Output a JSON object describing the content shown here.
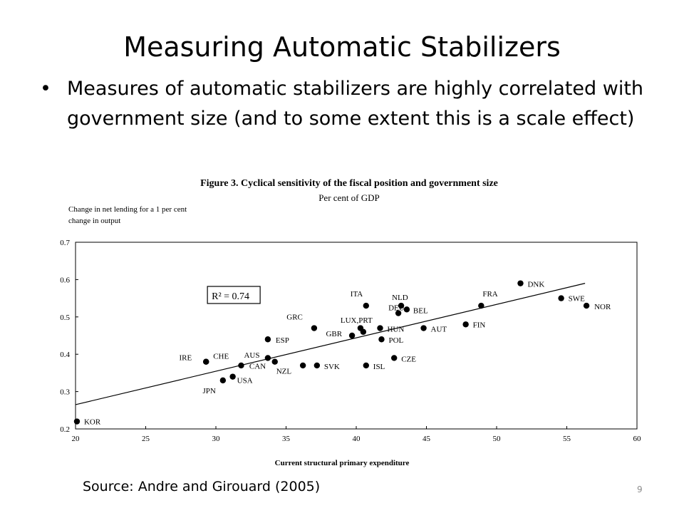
{
  "slide": {
    "title": "Measuring Automatic Stabilizers",
    "bullet": "Measures of automatic stabilizers are highly correlated with government size (and to some extent this is a scale effect)",
    "bullet_glyph": "•",
    "source": "Source: Andre and Girouard (2005)",
    "page_number": "9"
  },
  "chart_data": {
    "type": "scatter",
    "title": "Figure 3. Cyclical sensitivity of the fiscal position and government size",
    "subtitle": "Per cent of GDP",
    "ylabel": "Change in net lending for a 1 per cent change in output",
    "xlabel": "Current structural primary expenditure",
    "xlim": [
      20,
      60
    ],
    "ylim": [
      0.2,
      0.7
    ],
    "xticks": [
      20,
      25,
      30,
      35,
      40,
      45,
      50,
      55,
      60
    ],
    "xtick_labels": [
      "20",
      "25",
      "30",
      "35",
      "40",
      "45",
      "50",
      "55",
      "60"
    ],
    "yticks": [
      0.2,
      0.3,
      0.4,
      0.5,
      0.6,
      0.7
    ],
    "ytick_labels": [
      "0.2",
      "0.3",
      "0.4",
      "0.5",
      "0.6",
      "0.7"
    ],
    "grid": false,
    "annotation": "R² = 0.74",
    "trendline": {
      "x": [
        20,
        56.3
      ],
      "y": [
        0.265,
        0.59
      ]
    },
    "points": [
      {
        "label": "KOR",
        "x": 20.1,
        "y": 0.22
      },
      {
        "label": "IRE",
        "x": 29.3,
        "y": 0.38
      },
      {
        "label": "CHE",
        "x": 29.3,
        "y": 0.38
      },
      {
        "label": "JPN",
        "x": 30.5,
        "y": 0.33
      },
      {
        "label": "USA",
        "x": 31.2,
        "y": 0.34
      },
      {
        "label": "AUS",
        "x": 31.8,
        "y": 0.37
      },
      {
        "label": "CAN",
        "x": 33.7,
        "y": 0.39
      },
      {
        "label": "ESP",
        "x": 33.7,
        "y": 0.44
      },
      {
        "label": "NZL",
        "x": 34.2,
        "y": 0.38
      },
      {
        "label": "",
        "x": 36.2,
        "y": 0.37
      },
      {
        "label": "SVK",
        "x": 37.2,
        "y": 0.37
      },
      {
        "label": "GRC",
        "x": 37.0,
        "y": 0.47
      },
      {
        "label": "GBR",
        "x": 39.7,
        "y": 0.45
      },
      {
        "label": "LUX,PRT",
        "x": 40.5,
        "y": 0.46
      },
      {
        "label": "",
        "x": 40.3,
        "y": 0.47
      },
      {
        "label": "ITA",
        "x": 40.7,
        "y": 0.53
      },
      {
        "label": "ISL",
        "x": 40.7,
        "y": 0.37
      },
      {
        "label": "HUN",
        "x": 41.7,
        "y": 0.47
      },
      {
        "label": "POL",
        "x": 41.8,
        "y": 0.44
      },
      {
        "label": "CZE",
        "x": 42.7,
        "y": 0.39
      },
      {
        "label": "DEU",
        "x": 43.0,
        "y": 0.51
      },
      {
        "label": "NLD",
        "x": 43.2,
        "y": 0.53
      },
      {
        "label": "BEL",
        "x": 43.6,
        "y": 0.52
      },
      {
        "label": "AUT",
        "x": 44.8,
        "y": 0.47
      },
      {
        "label": "FIN",
        "x": 47.8,
        "y": 0.48
      },
      {
        "label": "FRA",
        "x": 48.9,
        "y": 0.53
      },
      {
        "label": "DNK",
        "x": 51.7,
        "y": 0.59
      },
      {
        "label": "SWE",
        "x": 54.6,
        "y": 0.55
      },
      {
        "label": "NOR",
        "x": 56.4,
        "y": 0.53
      }
    ]
  },
  "colors": {
    "marker": "#000000",
    "text": "#000000",
    "page_number": "#8c8c8c"
  }
}
